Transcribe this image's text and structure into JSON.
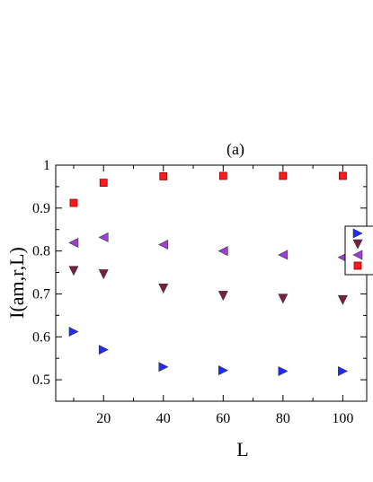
{
  "chart_data": {
    "type": "scatter",
    "title": "(a)",
    "xlabel": "L",
    "ylabel": "I(am,r,L)",
    "xlim": [
      4,
      108
    ],
    "ylim": [
      0.45,
      1.0
    ],
    "xticks": [
      20,
      40,
      60,
      80,
      100
    ],
    "yticks": [
      0.5,
      0.6,
      0.7,
      0.8,
      0.9,
      1
    ],
    "legend_position": "right (partially cropped)",
    "grid": false,
    "series": [
      {
        "marker": "triangle-right",
        "color": "#1f2bff",
        "x": [
          10,
          20,
          40,
          60,
          80,
          100
        ],
        "y": [
          0.612,
          0.57,
          0.53,
          0.522,
          0.52,
          0.52
        ]
      },
      {
        "marker": "triangle-down",
        "color": "#7a1f3d",
        "x": [
          10,
          20,
          40,
          60,
          80,
          100
        ],
        "y": [
          0.754,
          0.746,
          0.713,
          0.696,
          0.689,
          0.686
        ]
      },
      {
        "marker": "triangle-left",
        "color": "#9b3fd6",
        "x": [
          10,
          20,
          40,
          60,
          80,
          100
        ],
        "y": [
          0.819,
          0.832,
          0.815,
          0.8,
          0.791,
          0.785
        ]
      },
      {
        "marker": "square",
        "color": "#ff1a1a",
        "x": [
          10,
          20,
          40,
          60,
          80,
          100
        ],
        "y": [
          0.912,
          0.959,
          0.974,
          0.975,
          0.975,
          0.975
        ]
      }
    ]
  }
}
